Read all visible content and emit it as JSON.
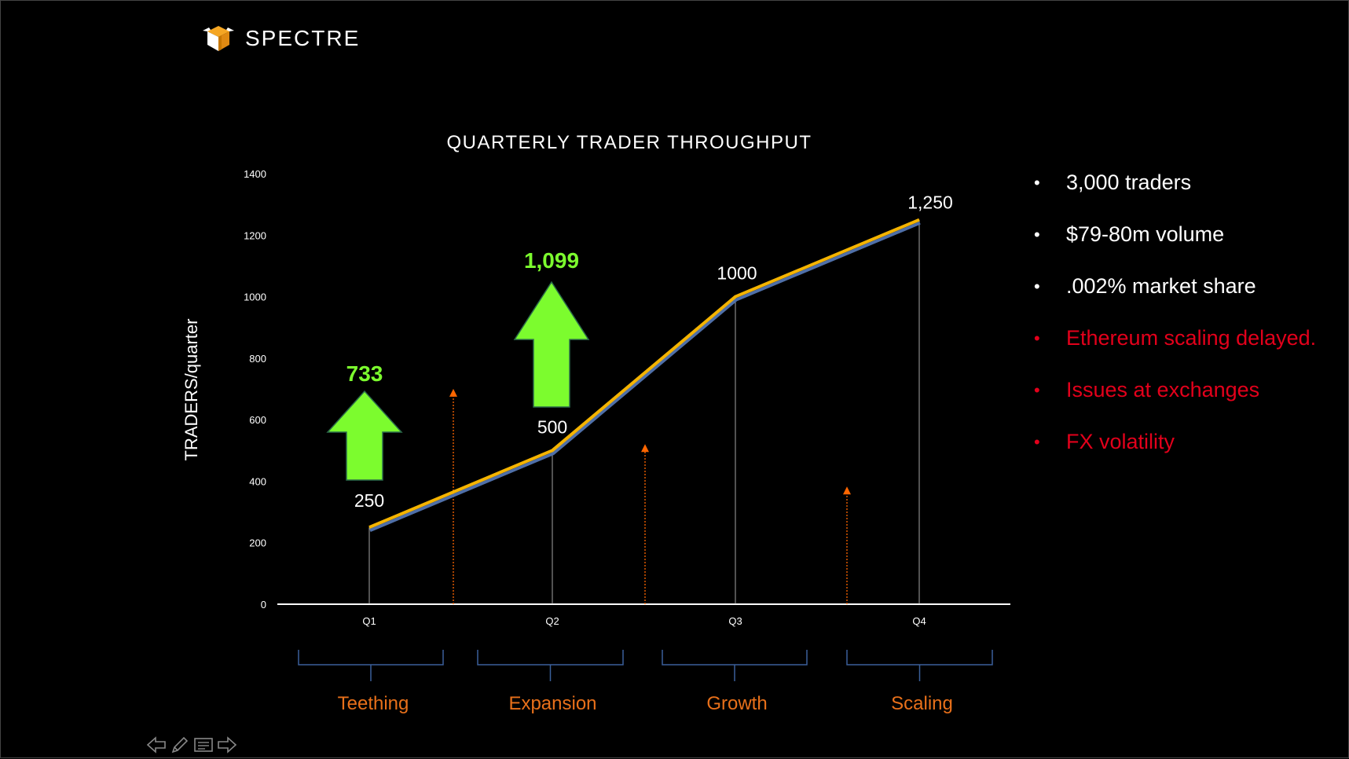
{
  "brand": {
    "name": "SPECTRE"
  },
  "colors": {
    "line": "#f5b400",
    "line_shadow": "#4f6fa8",
    "arrow_green": "#7cfc2e",
    "phase_text": "#e8701a",
    "dashed_marker": "#ff6600",
    "red_text": "#e3001b"
  },
  "chart_data": {
    "type": "line",
    "title": "QUARTERLY TRADER THROUGHPUT",
    "ylabel": "TRADERS/quarter",
    "xlabel": "",
    "ylim": [
      0,
      1400
    ],
    "yticks": [
      "0",
      "200",
      "400",
      "600",
      "800",
      "1000",
      "1200",
      "1400"
    ],
    "categories": [
      "Q1",
      "Q2",
      "Q3",
      "Q4"
    ],
    "series": [
      {
        "values": [
          250,
          500,
          1000,
          1250
        ],
        "labels": [
          "250",
          "500",
          "1000",
          "1,250"
        ]
      }
    ],
    "growth_arrows": [
      {
        "quarter": "Q1",
        "label": "733"
      },
      {
        "quarter": "Q2",
        "label": "1,099"
      }
    ],
    "phases": [
      "Teething",
      "Expansion",
      "Growth",
      "Scaling"
    ],
    "grid": false,
    "legend": "none"
  },
  "bullets": [
    {
      "text": "3,000 traders",
      "style": "white"
    },
    {
      "text": "$79-80m volume",
      "style": "white"
    },
    {
      "text": ".002% market share",
      "style": "white"
    },
    {
      "text": "Ethereum scaling delayed.",
      "style": "red"
    },
    {
      "text": "Issues at exchanges",
      "style": "red"
    },
    {
      "text": "FX volatility",
      "style": "red"
    }
  ],
  "nav": [
    {
      "icon": "arrow-left-icon"
    },
    {
      "icon": "pen-icon"
    },
    {
      "icon": "notes-icon"
    },
    {
      "icon": "arrow-right-icon"
    }
  ]
}
